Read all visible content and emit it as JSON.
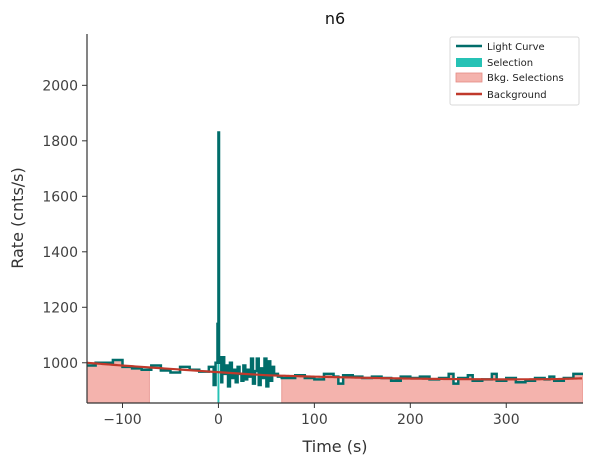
{
  "chart_data": {
    "type": "line",
    "title": "n6",
    "xlabel": "Time (s)",
    "ylabel": "Rate (cnts/s)",
    "xlim": [
      -137,
      380
    ],
    "ylim": [
      855,
      2185
    ],
    "x_ticks": [
      -100,
      0,
      100,
      200,
      300
    ],
    "x_tick_labels": [
      "−100",
      "0",
      "100",
      "200",
      "300"
    ],
    "y_ticks": [
      1000,
      1200,
      1400,
      1600,
      1800,
      2000
    ],
    "y_tick_labels": [
      "1000",
      "1200",
      "1400",
      "1600",
      "1800",
      "2000"
    ],
    "grid": false,
    "legend_position": "top-right",
    "colors": {
      "light_curve": "#006d6a",
      "selection": "#26c2b5",
      "bkg_fill": "#f4b3ad",
      "bkg_edge": "#e58b84",
      "background": "#c0392b"
    },
    "legend": [
      {
        "label": "Light Curve",
        "kind": "line",
        "color": "#006d6a"
      },
      {
        "label": "Selection",
        "kind": "patch",
        "color": "#26c2b5"
      },
      {
        "label": "Bkg. Selections",
        "kind": "patch",
        "color": "#f4b3ad"
      },
      {
        "label": "Background",
        "kind": "line",
        "color": "#c0392b"
      }
    ],
    "selection": [
      -1,
      1
    ],
    "bkg_selections": [
      [
        -137,
        -72
      ],
      [
        66,
        380
      ]
    ],
    "background": {
      "x": [
        -137,
        -100,
        -50,
        0,
        50,
        100,
        150,
        200,
        250,
        300,
        350,
        380
      ],
      "y": [
        1000,
        990,
        978,
        966,
        955,
        950,
        946,
        943,
        941,
        940,
        941,
        944
      ]
    },
    "light_curve": [
      [
        -137,
        -128,
        990
      ],
      [
        -128,
        -110,
        1000
      ],
      [
        -110,
        -100,
        1010
      ],
      [
        -100,
        -90,
        985
      ],
      [
        -90,
        -80,
        980
      ],
      [
        -80,
        -70,
        975
      ],
      [
        -70,
        -60,
        990
      ],
      [
        -60,
        -50,
        972
      ],
      [
        -50,
        -40,
        965
      ],
      [
        -40,
        -30,
        985
      ],
      [
        -30,
        -20,
        975
      ],
      [
        -20,
        -10,
        968
      ],
      [
        -10,
        -5,
        985
      ],
      [
        -5,
        -3,
        920
      ],
      [
        -3,
        -1,
        1000
      ],
      [
        -1,
        0,
        1140
      ],
      [
        0,
        0.6,
        1830
      ],
      [
        0.6,
        1.5,
        1000
      ],
      [
        1.5,
        3,
        1020
      ],
      [
        3,
        4,
        930
      ],
      [
        4,
        6,
        1020
      ],
      [
        6,
        8,
        960
      ],
      [
        8,
        10,
        990
      ],
      [
        10,
        12,
        915
      ],
      [
        12,
        14,
        1000
      ],
      [
        14,
        16,
        945
      ],
      [
        16,
        18,
        975
      ],
      [
        18,
        20,
        930
      ],
      [
        20,
        22,
        985
      ],
      [
        22,
        24,
        960
      ],
      [
        24,
        26,
        935
      ],
      [
        26,
        28,
        990
      ],
      [
        28,
        30,
        940
      ],
      [
        30,
        32,
        975
      ],
      [
        32,
        34,
        950
      ],
      [
        34,
        36,
        1015
      ],
      [
        36,
        38,
        925
      ],
      [
        38,
        40,
        970
      ],
      [
        40,
        42,
        1015
      ],
      [
        42,
        44,
        920
      ],
      [
        44,
        46,
        980
      ],
      [
        46,
        48,
        945
      ],
      [
        48,
        50,
        1015
      ],
      [
        50,
        52,
        915
      ],
      [
        52,
        54,
        1005
      ],
      [
        54,
        56,
        935
      ],
      [
        56,
        58,
        985
      ],
      [
        58,
        62,
        960
      ],
      [
        62,
        66,
        950
      ],
      [
        66,
        80,
        945
      ],
      [
        80,
        90,
        955
      ],
      [
        90,
        100,
        945
      ],
      [
        100,
        110,
        940
      ],
      [
        110,
        120,
        960
      ],
      [
        120,
        125,
        950
      ],
      [
        125,
        130,
        925
      ],
      [
        130,
        140,
        955
      ],
      [
        140,
        150,
        950
      ],
      [
        150,
        160,
        945
      ],
      [
        160,
        170,
        950
      ],
      [
        170,
        180,
        945
      ],
      [
        180,
        190,
        935
      ],
      [
        190,
        200,
        950
      ],
      [
        200,
        210,
        945
      ],
      [
        210,
        220,
        950
      ],
      [
        220,
        230,
        940
      ],
      [
        230,
        240,
        945
      ],
      [
        240,
        245,
        960
      ],
      [
        245,
        250,
        925
      ],
      [
        250,
        260,
        945
      ],
      [
        260,
        265,
        955
      ],
      [
        265,
        275,
        935
      ],
      [
        275,
        285,
        940
      ],
      [
        285,
        290,
        960
      ],
      [
        290,
        300,
        935
      ],
      [
        300,
        310,
        945
      ],
      [
        310,
        320,
        930
      ],
      [
        320,
        330,
        935
      ],
      [
        330,
        340,
        945
      ],
      [
        340,
        345,
        940
      ],
      [
        345,
        350,
        950
      ],
      [
        350,
        360,
        935
      ],
      [
        360,
        370,
        945
      ],
      [
        370,
        380,
        960
      ]
    ]
  }
}
